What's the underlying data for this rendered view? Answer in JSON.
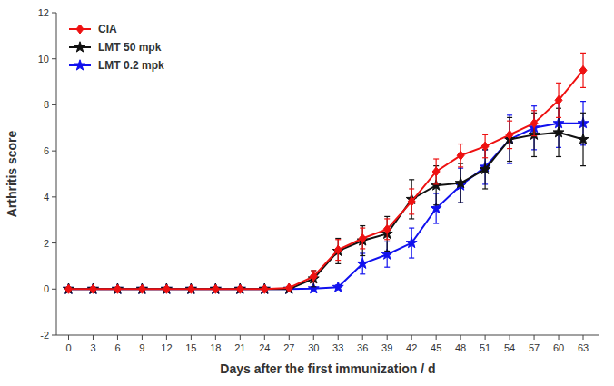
{
  "chart_data": {
    "type": "line",
    "xlabel": "Days after the first immunization / d",
    "ylabel": "Arthritis score",
    "x": [
      0,
      3,
      6,
      9,
      12,
      15,
      18,
      21,
      24,
      27,
      30,
      33,
      36,
      39,
      42,
      45,
      48,
      51,
      54,
      57,
      60,
      63
    ],
    "xlim": [
      -1.5,
      65
    ],
    "xticks": [
      0,
      3,
      6,
      9,
      12,
      15,
      18,
      21,
      24,
      27,
      30,
      33,
      36,
      39,
      42,
      45,
      48,
      51,
      54,
      57,
      60,
      63
    ],
    "ylim": [
      -2,
      12
    ],
    "yticks": [
      -2,
      0,
      2,
      4,
      6,
      8,
      10,
      12
    ],
    "grid": false,
    "legend": "upper left",
    "series": [
      {
        "name": "CIA",
        "color": "#EE1111",
        "marker": "diamond",
        "values": [
          0,
          0,
          0,
          0,
          0,
          0,
          0,
          0,
          0,
          0.05,
          0.55,
          1.7,
          2.2,
          2.6,
          3.8,
          5.1,
          5.8,
          6.2,
          6.7,
          7.2,
          8.2,
          9.5
        ],
        "errors": [
          0,
          0,
          0,
          0,
          0,
          0,
          0,
          0,
          0,
          0.03,
          0.25,
          0.45,
          0.45,
          0.45,
          0.55,
          0.55,
          0.5,
          0.5,
          0.6,
          0.55,
          0.75,
          0.75
        ]
      },
      {
        "name": "LMT 50 mpk",
        "color": "#111111",
        "marker": "star",
        "values": [
          0,
          0,
          0,
          0,
          0,
          0,
          0,
          0,
          0,
          0,
          0.45,
          1.65,
          2.1,
          2.4,
          3.9,
          4.5,
          4.6,
          5.2,
          6.5,
          6.7,
          6.8,
          6.5
        ],
        "errors": [
          0,
          0,
          0,
          0,
          0,
          0,
          0,
          0,
          0,
          0,
          0.35,
          0.55,
          0.65,
          0.75,
          0.85,
          0.85,
          0.85,
          0.85,
          0.95,
          0.95,
          1.05,
          1.15
        ]
      },
      {
        "name": "LMT 0.2 mpk",
        "color": "#1111EE",
        "marker": "star",
        "values": [
          0,
          0,
          0,
          0,
          0,
          0,
          0,
          0,
          0,
          0,
          0.02,
          0.08,
          1.1,
          1.5,
          2.0,
          3.5,
          4.5,
          5.3,
          6.5,
          7.0,
          7.2,
          7.2
        ],
        "errors": [
          0,
          0,
          0,
          0,
          0,
          0,
          0,
          0,
          0,
          0,
          0.02,
          0.1,
          0.45,
          0.55,
          0.65,
          0.65,
          0.75,
          0.75,
          1.05,
          0.95,
          1.05,
          0.95
        ]
      }
    ]
  }
}
